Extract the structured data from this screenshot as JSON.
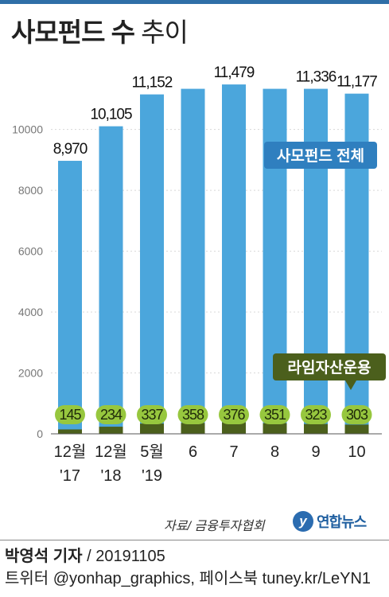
{
  "title": {
    "bold": "사모펀드 수",
    "light": " 추이"
  },
  "chart_data": {
    "type": "bar",
    "categories": [
      [
        "12월",
        "'17"
      ],
      [
        "12월",
        "'18"
      ],
      [
        "5월",
        "'19"
      ],
      [
        "6"
      ],
      [
        "7"
      ],
      [
        "8"
      ],
      [
        "9"
      ],
      [
        "10"
      ]
    ],
    "series": [
      {
        "name": "사모펀드 전체",
        "values": [
          8970,
          10105,
          11152,
          11336,
          11479,
          11336,
          11336,
          11177
        ],
        "color": "#4ba6dc"
      },
      {
        "name": "라임자산운용",
        "values": [
          145,
          234,
          337,
          358,
          376,
          351,
          323,
          303
        ],
        "color": "#4b5f1c"
      }
    ],
    "top_labels": [
      "8,970",
      "10,105",
      "11,152",
      "",
      "11,479",
      "",
      "11,336",
      "11,177"
    ],
    "bottom_labels": [
      "145",
      "234",
      "337",
      "358",
      "376",
      "351",
      "323",
      "303"
    ],
    "yticks": [
      0,
      2000,
      4000,
      6000,
      8000,
      10000
    ],
    "ylim": [
      0,
      11900
    ],
    "legend_labels": {
      "total": "사모펀드 전체",
      "lime": "라임자산운용"
    },
    "colors": {
      "total": "#4ba6dc",
      "lime": "#4b5f1c",
      "lime_pill": "#97c73e",
      "axis_text": "#777777"
    }
  },
  "source": "자료/ 금융투자협회",
  "logo": {
    "icon": "y",
    "text": "연합뉴스"
  },
  "credit": {
    "reporter": "박영석 기자",
    "sep": " / ",
    "date": "20191105"
  },
  "social": "트위터 @yonhap_graphics, 페이스북 tuney.kr/LeYN1"
}
